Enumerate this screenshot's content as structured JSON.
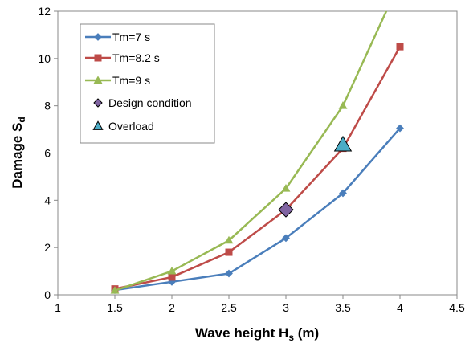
{
  "chart_data": {
    "type": "line",
    "xlabel": "Wave height H",
    "xlabel_sub": "s",
    "xlabel_suffix": " (m)",
    "ylabel": "Damage S",
    "ylabel_sub": "d",
    "xlim": [
      1,
      4.5
    ],
    "ylim": [
      0,
      12
    ],
    "xticks": [
      "1",
      "1.5",
      "2",
      "2.5",
      "3",
      "3.5",
      "4",
      "4.5"
    ],
    "yticks": [
      "0",
      "2",
      "4",
      "6",
      "8",
      "10",
      "12"
    ],
    "grid": false,
    "legend_position": "top-left",
    "series": [
      {
        "name": "Tm=7 s",
        "color": "#4a7ebb",
        "marker": "diamond",
        "x": [
          1.5,
          2,
          2.5,
          3,
          3.5,
          4
        ],
        "y": [
          0.2,
          0.55,
          0.9,
          2.4,
          4.3,
          7.05
        ]
      },
      {
        "name": "Tm=8.2 s",
        "color": "#be4b48",
        "marker": "square",
        "x": [
          1.5,
          2,
          2.5,
          3,
          3.5,
          4
        ],
        "y": [
          0.25,
          0.75,
          1.8,
          3.6,
          6.2,
          10.5
        ]
      },
      {
        "name": "Tm=9 s",
        "color": "#98b954",
        "marker": "triangle",
        "x": [
          1.5,
          2,
          2.5,
          3,
          3.5,
          3.88
        ],
        "y": [
          0.18,
          1.0,
          2.3,
          4.5,
          8.0,
          12.0
        ]
      }
    ],
    "points": [
      {
        "name": "Design condition",
        "color": "#8064a2",
        "marker": "diamond",
        "x": 3,
        "y": 3.6
      },
      {
        "name": "Overload",
        "color": "#4bacc6",
        "marker": "triangle",
        "x": 3.5,
        "y": 6.35
      }
    ]
  }
}
